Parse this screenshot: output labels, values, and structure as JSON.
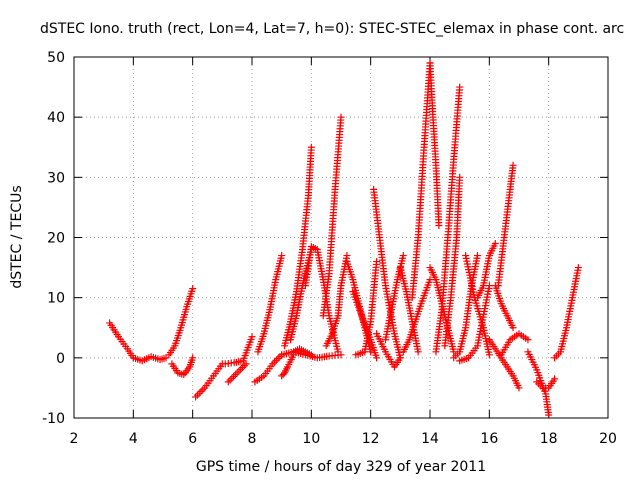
{
  "chart_data": {
    "type": "scatter",
    "title": "dSTEC Iono. truth (rect, Lon=4, Lat=7, h=0): STEC-STEC_elemax in phase cont. arc",
    "xlabel": "GPS time / hours of day 329 of year 2011",
    "ylabel": "dSTEC  / TECUs",
    "xlim": [
      2,
      20
    ],
    "ylim": [
      -10,
      50
    ],
    "xticks": [
      2,
      4,
      6,
      8,
      10,
      12,
      14,
      16,
      18,
      20
    ],
    "yticks": [
      -10,
      0,
      10,
      20,
      30,
      40,
      50
    ],
    "grid": true,
    "marker": "+",
    "color": "#ff0000",
    "series": [
      {
        "x": [
          3.2,
          3.5,
          3.8,
          4.0,
          4.3,
          4.6,
          4.9,
          5.1
        ],
        "y": [
          5.8,
          3.5,
          1.5,
          0.0,
          -0.5,
          0.2,
          -0.3,
          0.0
        ]
      },
      {
        "x": [
          5.2,
          5.4,
          5.6,
          5.8,
          6.0
        ],
        "y": [
          0.5,
          2.0,
          5.0,
          8.5,
          11.5
        ]
      },
      {
        "x": [
          5.3,
          5.5,
          5.7,
          5.9,
          6.0
        ],
        "y": [
          -1.0,
          -2.5,
          -2.8,
          -1.5,
          0.0
        ]
      },
      {
        "x": [
          6.1,
          6.4,
          6.7,
          7.0
        ],
        "y": [
          -6.5,
          -5.0,
          -3.0,
          -1.0
        ]
      },
      {
        "x": [
          7.1,
          7.4,
          7.7,
          8.0
        ],
        "y": [
          -1.0,
          -0.8,
          -0.5,
          3.5
        ]
      },
      {
        "x": [
          7.2,
          7.5,
          7.8
        ],
        "y": [
          -4.0,
          -2.5,
          -1.0
        ]
      },
      {
        "x": [
          8.1,
          8.4,
          8.7,
          9.0
        ],
        "y": [
          -4.0,
          -3.0,
          -1.0,
          0.5
        ]
      },
      {
        "x": [
          8.2,
          8.4,
          8.6,
          8.8,
          9.0
        ],
        "y": [
          1.0,
          4.0,
          8.0,
          13.0,
          17.0
        ]
      },
      {
        "x": [
          9.0,
          9.4,
          9.8,
          10.2,
          10.6,
          11.0
        ],
        "y": [
          0.5,
          1.0,
          0.5,
          0.0,
          0.3,
          0.5
        ]
      },
      {
        "x": [
          9.0,
          9.1,
          9.2,
          9.4
        ],
        "y": [
          -3.0,
          -2.5,
          -1.5,
          0.5
        ]
      },
      {
        "x": [
          9.1,
          9.3,
          9.5,
          9.7,
          9.9,
          10.0
        ],
        "y": [
          2.0,
          6.0,
          11.0,
          18.0,
          27.0,
          35.0
        ]
      },
      {
        "x": [
          9.3,
          9.5,
          9.7,
          9.8,
          10.0
        ],
        "y": [
          3.0,
          7.0,
          12.0,
          14.0,
          18.0
        ]
      },
      {
        "x": [
          9.8,
          10.0,
          10.2,
          10.4,
          10.6,
          10.9
        ],
        "y": [
          12.0,
          18.5,
          18.0,
          13.0,
          7.0,
          1.0
        ]
      },
      {
        "x": [
          9.4,
          9.6,
          9.8,
          10.0
        ],
        "y": [
          1.0,
          1.5,
          1.0,
          0.5
        ]
      },
      {
        "x": [
          10.4,
          10.6,
          10.8,
          11.0
        ],
        "y": [
          7.0,
          14.0,
          28.0,
          40.0
        ]
      },
      {
        "x": [
          10.5,
          10.7,
          10.9,
          11.0,
          11.2
        ],
        "y": [
          2.0,
          4.0,
          7.0,
          12.0,
          17.0
        ]
      },
      {
        "x": [
          11.2,
          11.4,
          11.6,
          11.8,
          12.0
        ],
        "y": [
          16.0,
          13.0,
          9.0,
          5.0,
          1.0
        ]
      },
      {
        "x": [
          11.4,
          11.7,
          12.0,
          12.2
        ],
        "y": [
          11.0,
          7.0,
          3.0,
          0.0
        ]
      },
      {
        "x": [
          11.5,
          11.8,
          12.0,
          12.2
        ],
        "y": [
          0.5,
          1.0,
          6.0,
          16.0
        ]
      },
      {
        "x": [
          12.1,
          12.3,
          12.5,
          12.8,
          13.0
        ],
        "y": [
          28.0,
          20.0,
          12.0,
          4.0,
          0.0
        ]
      },
      {
        "x": [
          12.2,
          12.5,
          12.8,
          13.0
        ],
        "y": [
          4.0,
          1.0,
          -1.5,
          0.0
        ]
      },
      {
        "x": [
          12.5,
          12.7,
          12.9,
          13.1
        ],
        "y": [
          3.0,
          8.0,
          13.0,
          17.0
        ]
      },
      {
        "x": [
          13.0,
          13.2,
          13.4,
          13.6
        ],
        "y": [
          15.0,
          11.0,
          6.0,
          1.0
        ]
      },
      {
        "x": [
          13.1,
          13.3,
          13.5,
          13.7,
          14.0
        ],
        "y": [
          1.0,
          3.0,
          6.0,
          9.0,
          13.0
        ]
      },
      {
        "x": [
          13.4,
          13.6,
          13.8,
          14.0
        ],
        "y": [
          10.0,
          20.0,
          35.0,
          49.0
        ]
      },
      {
        "x": [
          14.0,
          14.1,
          14.2,
          14.3
        ],
        "y": [
          49.0,
          40.0,
          32.0,
          22.0
        ]
      },
      {
        "x": [
          14.0,
          14.2,
          14.4,
          14.6,
          14.8
        ],
        "y": [
          15.0,
          13.0,
          9.0,
          5.0,
          1.0
        ]
      },
      {
        "x": [
          14.2,
          14.4,
          14.6,
          14.8,
          15.0
        ],
        "y": [
          1.0,
          8.0,
          20.0,
          33.0,
          45.0
        ]
      },
      {
        "x": [
          14.5,
          14.7,
          14.9,
          15.0
        ],
        "y": [
          2.0,
          10.0,
          20.0,
          30.0
        ]
      },
      {
        "x": [
          14.8,
          15.0,
          15.2,
          15.4,
          15.6
        ],
        "y": [
          0.0,
          1.0,
          5.0,
          12.0,
          17.0
        ]
      },
      {
        "x": [
          15.0,
          15.3,
          15.6,
          16.0
        ],
        "y": [
          -0.5,
          0.0,
          2.0,
          12.0
        ]
      },
      {
        "x": [
          15.2,
          15.5,
          15.8,
          16.0
        ],
        "y": [
          17.0,
          10.0,
          5.0,
          0.5
        ]
      },
      {
        "x": [
          15.6,
          15.8,
          16.0,
          16.2
        ],
        "y": [
          10.0,
          12.0,
          17.0,
          19.0
        ]
      },
      {
        "x": [
          16.2,
          16.4,
          16.6,
          16.8
        ],
        "y": [
          12.0,
          9.0,
          7.0,
          5.0
        ]
      },
      {
        "x": [
          16.3,
          16.5,
          16.7,
          16.8
        ],
        "y": [
          12.0,
          20.0,
          28.0,
          32.0
        ]
      },
      {
        "x": [
          16.4,
          16.7,
          17.0,
          17.3
        ],
        "y": [
          0.5,
          3.0,
          4.0,
          3.0
        ]
      },
      {
        "x": [
          16.0,
          16.4,
          16.8,
          17.0
        ],
        "y": [
          3.0,
          0.0,
          -3.0,
          -5.0
        ]
      },
      {
        "x": [
          17.3,
          17.6,
          17.9,
          18.0
        ],
        "y": [
          1.0,
          -2.0,
          -6.0,
          -9.5
        ]
      },
      {
        "x": [
          17.6,
          17.8,
          18.0,
          18.2
        ],
        "y": [
          -4.0,
          -5.0,
          -5.0,
          -3.5
        ]
      },
      {
        "x": [
          18.2,
          18.4,
          18.6,
          18.8,
          19.0
        ],
        "y": [
          0.0,
          1.0,
          5.0,
          10.0,
          15.0
        ]
      }
    ]
  }
}
